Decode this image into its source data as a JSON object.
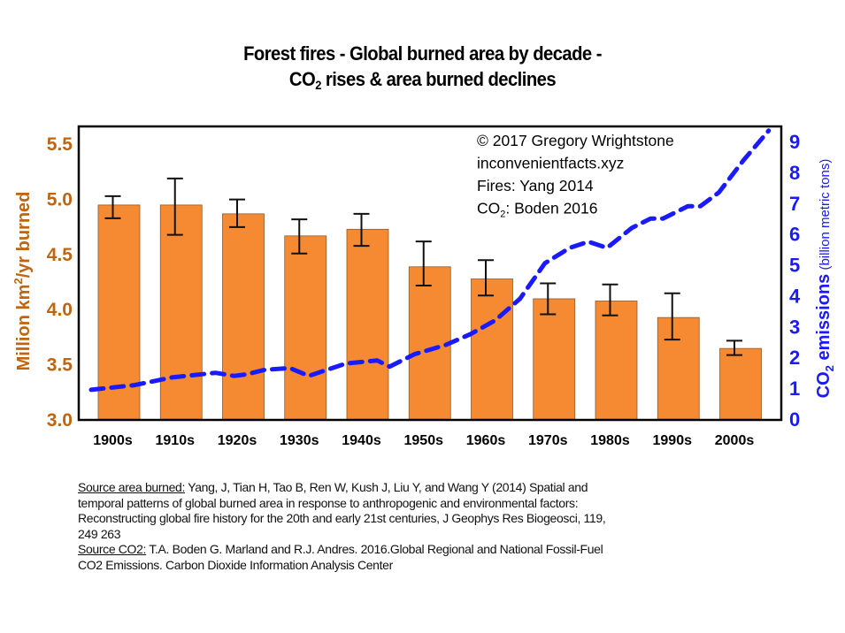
{
  "title": {
    "line1": "Forest fires - Global burned area by decade -",
    "line2_pre": "CO",
    "line2_sub": "2",
    "line2_post": " rises & area burned declines"
  },
  "chart_data": {
    "type": "bar+line",
    "categories": [
      "1900s",
      "1910s",
      "1920s",
      "1930s",
      "1940s",
      "1950s",
      "1960s",
      "1970s",
      "1980s",
      "1990s",
      "2000s"
    ],
    "left_axis": {
      "label_pre": "Million km",
      "label_sup": "2",
      "label_post": "/yr burned",
      "ylim": [
        3.0,
        5.5
      ],
      "ticks": [
        "3.0",
        "3.5",
        "4.0",
        "4.5",
        "5.0",
        "5.5"
      ],
      "color": "#c0650f"
    },
    "right_axis": {
      "label_pre": "CO",
      "label_sub": "2",
      "label_bold": " emissions",
      "label_units": " (billion metric tons)",
      "ylim": [
        0,
        9
      ],
      "ticks": [
        "0",
        "1",
        "2",
        "3",
        "4",
        "5",
        "6",
        "7",
        "8",
        "9"
      ],
      "color": "#1a1aff"
    },
    "bars": {
      "color": "#f58a33",
      "values": [
        4.94,
        4.94,
        4.86,
        4.66,
        4.72,
        4.38,
        4.27,
        4.09,
        4.07,
        3.92,
        3.64
      ],
      "error_high": [
        5.02,
        5.18,
        4.99,
        4.81,
        4.86,
        4.61,
        4.44,
        4.23,
        4.22,
        4.14,
        3.71
      ],
      "error_low": [
        4.82,
        4.67,
        4.74,
        4.5,
        4.57,
        4.21,
        4.12,
        3.95,
        3.94,
        3.72,
        3.58
      ]
    },
    "co2_line": {
      "color": "#1a1aff",
      "style": "dashed",
      "x": [
        1900,
        1907,
        1913,
        1920,
        1923,
        1925,
        1928,
        1932,
        1935,
        1941,
        1946,
        1948,
        1952,
        1957,
        1961,
        1965,
        1969,
        1973,
        1977,
        1980,
        1983,
        1987,
        1990,
        1992,
        1996,
        1998,
        2001,
        2005,
        2009
      ],
      "y": [
        0.95,
        1.1,
        1.35,
        1.5,
        1.4,
        1.45,
        1.6,
        1.65,
        1.4,
        1.8,
        1.9,
        1.7,
        2.1,
        2.4,
        2.75,
        3.2,
        3.9,
        5.05,
        5.55,
        5.75,
        5.55,
        6.2,
        6.5,
        6.5,
        6.9,
        6.9,
        7.35,
        8.4,
        9.35
      ]
    },
    "annotations": [
      "© 2017 Gregory Wrightstone",
      "inconvenientfacts.xyz",
      "Fires: Yang 2014"
    ],
    "annotation_co2": {
      "pre": "CO",
      "sub": "2",
      "post": ": Boden 2016"
    }
  },
  "notes": {
    "line1_label": "Source area burned:",
    "line1_text": " Yang, J, Tian H, Tao B, Ren W, Kush J, Liu Y, and Wang Y (2014) Spatial and",
    "line2": "temporal patterns of global burned area in response to anthropogenic and environmental factors:",
    "line3": "Reconstructing global fire history for the 20th and early 21st centuries, J Geophys Res Biogeosci, 119,",
    "line4": "249 263",
    "line5_label": "Source CO2:",
    "line5_text": " T.A. Boden G. Marland and R.J. Andres. 2016.Global Regional and National Fossil-Fuel",
    "line6": "CO2 Emissions. Carbon Dioxide Information Analysis Center"
  }
}
